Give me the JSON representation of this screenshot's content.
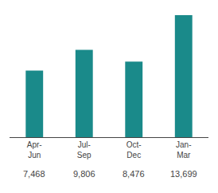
{
  "chart_data": {
    "type": "bar",
    "categories": [
      "Apr-\nJun",
      "Jul-\nSep",
      "Oct-\nDec",
      "Jan-\nMar"
    ],
    "values": [
      7468,
      9806,
      8476,
      13699
    ],
    "value_labels": [
      "7,468",
      "9,806",
      "8,476",
      "13,699"
    ],
    "data_labels": true,
    "color": "#1a8a8a",
    "ylim": [
      0,
      14500
    ],
    "grid": false,
    "tick_labels": "x"
  }
}
